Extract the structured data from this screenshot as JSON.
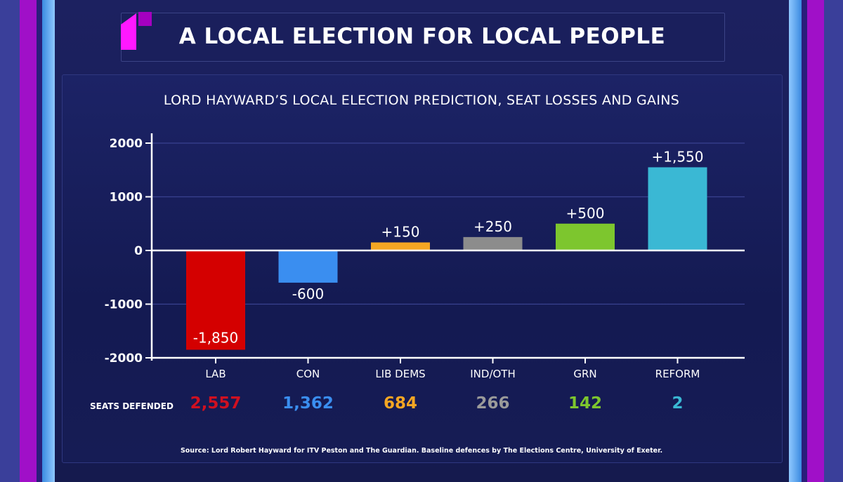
{
  "header": {
    "title": "A LOCAL ELECTION FOR LOCAL PEOPLE"
  },
  "colors": {
    "accent_magenta": "#ee16f0",
    "background": "#161b52"
  },
  "chart_data": {
    "type": "bar",
    "title": "LORD HAYWARD’S LOCAL ELECTION PREDICTION, SEAT LOSSES AND GAINS",
    "categories": [
      "LAB",
      "CON",
      "LIB DEMS",
      "IND/OTH",
      "GRN",
      "REFORM"
    ],
    "values": [
      -1850,
      -600,
      150,
      250,
      500,
      1550
    ],
    "data_labels": [
      "-1,850",
      "-600",
      "+150",
      "+250",
      "+500",
      "+1,550"
    ],
    "colors": [
      "#d40000",
      "#3a8ef0",
      "#f5a623",
      "#8c8c8c",
      "#7dc62e",
      "#3ab8d4"
    ],
    "ylim": [
      -2000,
      2000
    ],
    "yticks": [
      "2000",
      "1000",
      "0",
      "-1000",
      "-2000"
    ],
    "ytick_values": [
      2000,
      1000,
      0,
      -1000,
      -2000
    ],
    "grid": true,
    "xlabel": "",
    "ylabel": ""
  },
  "seats_defended": {
    "label": "SEATS DEFENDED",
    "values": [
      "2,557",
      "1,362",
      "684",
      "266",
      "142",
      "2"
    ],
    "colors": [
      "#d01020",
      "#3a8ef0",
      "#f5a623",
      "#9a9a9a",
      "#7dc62e",
      "#3ab8d4"
    ]
  },
  "source": "Source: Lord Robert Hayward for ITV Peston and The Guardian. Baseline defences by The Elections Centre, University of Exeter."
}
